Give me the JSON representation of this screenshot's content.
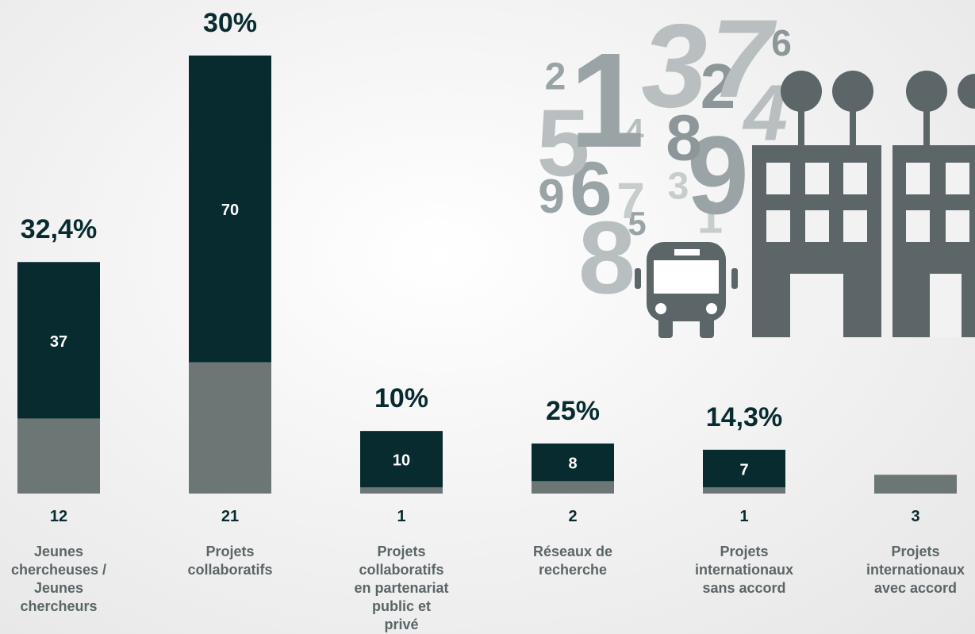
{
  "chart_data": {
    "type": "bar",
    "categories": [
      "Jeunes chercheuses / Jeunes chercheurs",
      "Projets collaboratifs",
      "Projets collaboratifs en partenariat public et privé",
      "Réseaux de recherche",
      "Projets internationaux sans accord",
      "Projets internationaux avec accord"
    ],
    "totals": [
      37,
      70,
      10,
      8,
      7,
      null
    ],
    "funded": [
      12,
      21,
      1,
      2,
      1,
      3
    ],
    "rates": [
      32.4,
      30,
      10,
      25,
      14.3,
      null
    ],
    "rate_labels": [
      "32,4%",
      "30%",
      "10%",
      "25%",
      "14,3%",
      null
    ],
    "total_color": "#082b2f",
    "funded_color": "#6c7674",
    "ylim": [
      0,
      70
    ]
  },
  "illustration": {
    "digits": [
      "2",
      "1",
      "3",
      "7",
      "6",
      "2",
      "4",
      "5",
      "4",
      "8",
      "9",
      "9",
      "6",
      "7",
      "3",
      "1",
      "8",
      "5"
    ]
  }
}
